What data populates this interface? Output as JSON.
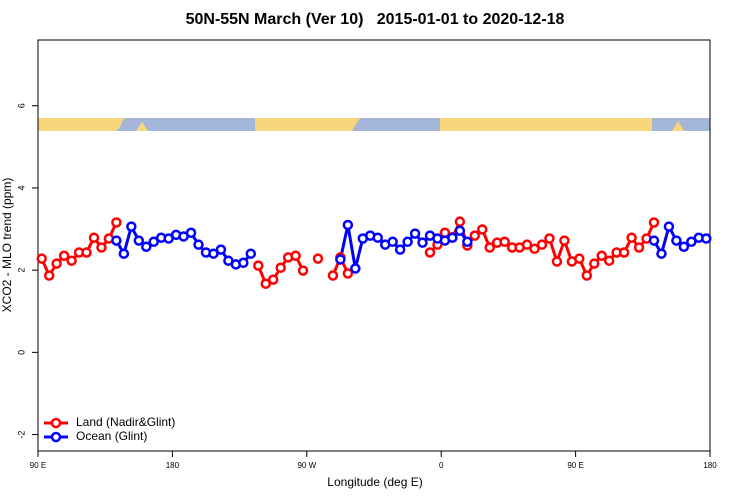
{
  "chart_data": {
    "type": "line",
    "title": "50N-55N March (Ver 10)   2015-01-01 to 2020-12-18",
    "x_label": "Longitude (deg E)",
    "y_label": "XCO2 - MLO trend (ppm)",
    "x": [
      92.5,
      97.5,
      102.5,
      107.5,
      112.5,
      117.5,
      122.5,
      127.5,
      132.5,
      137.5,
      142.5,
      147.5,
      152.5,
      157.5,
      162.5,
      167.5,
      172.5,
      177.5,
      182.5,
      187.5,
      192.5,
      197.5,
      202.5,
      207.5,
      212.5,
      217.5,
      222.5,
      227.5,
      232.5,
      237.5,
      242.5,
      247.5,
      252.5,
      257.5,
      262.5,
      267.5,
      272.5,
      277.5,
      282.5,
      287.5,
      292.5,
      297.5,
      302.5,
      307.5,
      312.5,
      317.5,
      322.5,
      327.5,
      332.5,
      337.5,
      342.5,
      347.5,
      352.5,
      357.5,
      362.5,
      367.5,
      372.5,
      377.5,
      382.5,
      387.5,
      392.5,
      397.5,
      402.5,
      407.5,
      412.5,
      417.5,
      422.5,
      427.5,
      432.5,
      437.5,
      442.5,
      447.5,
      452.5,
      457.5,
      462.5,
      467.5,
      472.5,
      477.5,
      482.5,
      487.5,
      492.5,
      497.5,
      502.5,
      507.5,
      512.5,
      517.5,
      522.5,
      527.5,
      532.5,
      537.5
    ],
    "series": [
      {
        "name": "Land (Nadir&Glint)",
        "color": "#ff0000",
        "values": [
          2.28,
          1.87,
          2.16,
          2.35,
          2.23,
          2.43,
          2.43,
          2.79,
          2.55,
          2.77,
          3.16,
          null,
          null,
          null,
          null,
          null,
          null,
          null,
          null,
          null,
          null,
          null,
          null,
          null,
          null,
          null,
          null,
          null,
          null,
          2.11,
          1.67,
          1.77,
          2.06,
          2.31,
          2.35,
          1.99,
          null,
          2.28,
          null,
          1.87,
          2.31,
          1.92,
          null,
          null,
          null,
          null,
          null,
          null,
          null,
          null,
          null,
          null,
          2.43,
          2.62,
          2.91,
          2.8,
          3.18,
          2.6,
          2.84,
          2.99,
          2.55,
          2.67,
          2.69,
          2.55,
          2.55,
          2.62,
          2.52,
          2.62,
          2.77,
          2.21,
          2.72,
          2.21,
          2.28,
          1.87,
          2.16,
          2.35,
          2.23,
          2.43,
          2.43,
          2.79,
          2.55,
          2.77,
          3.16,
          null,
          null,
          null,
          null,
          null,
          null,
          null
        ]
      },
      {
        "name": "Ocean (Glint)",
        "color": "#0000ff",
        "values": [
          null,
          null,
          null,
          null,
          null,
          null,
          null,
          null,
          null,
          null,
          2.72,
          2.4,
          3.06,
          2.72,
          2.57,
          2.69,
          2.79,
          2.77,
          2.86,
          2.82,
          2.91,
          2.62,
          2.43,
          2.4,
          2.5,
          2.23,
          2.14,
          2.18,
          2.4,
          null,
          null,
          null,
          null,
          null,
          null,
          null,
          null,
          null,
          null,
          null,
          2.26,
          3.1,
          2.04,
          2.77,
          2.84,
          2.79,
          2.62,
          2.69,
          2.5,
          2.69,
          2.89,
          2.67,
          2.84,
          2.77,
          2.72,
          2.79,
          2.96,
          2.69,
          null,
          null,
          null,
          null,
          null,
          null,
          null,
          null,
          null,
          null,
          null,
          null,
          null,
          null,
          null,
          null,
          null,
          null,
          null,
          null,
          null,
          null,
          null,
          null,
          2.72,
          2.4,
          3.06,
          2.72,
          2.57,
          2.69,
          2.79,
          2.77
        ]
      }
    ],
    "xlim": [
      90,
      540
    ],
    "xticks": [
      {
        "value": 90,
        "label": "90 E"
      },
      180,
      {
        "value": 270,
        "label": "90 W"
      },
      {
        "value": 360,
        "label": "0"
      },
      {
        "value": 450,
        "label": "90 E"
      },
      {
        "value": 540,
        "label": "180"
      }
    ],
    "ylim": [
      -2.4,
      7.6
    ],
    "yticks": [
      -2,
      0,
      2,
      4,
      6
    ],
    "legend": "bottom-left"
  }
}
